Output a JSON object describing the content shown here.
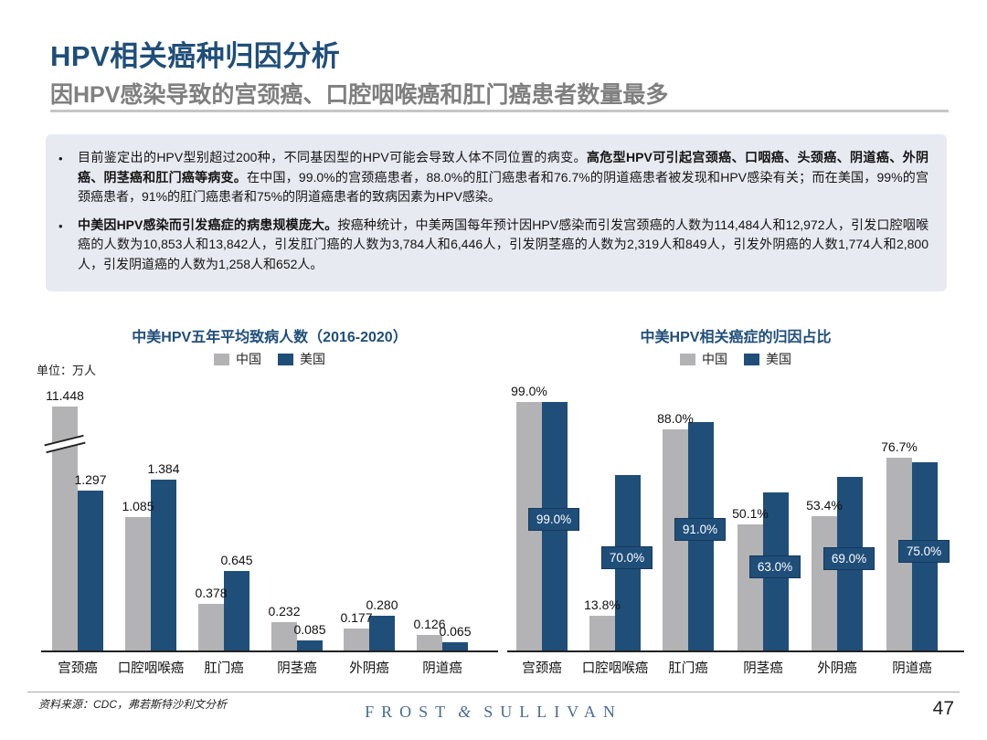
{
  "header": {
    "title": "HPV相关癌种归因分析",
    "subtitle": "因HPV感染导致的宫颈癌、口腔咽喉癌和肛门癌患者数量最多"
  },
  "info_box": {
    "bullets": [
      {
        "segments": [
          {
            "text": "目前鉴定出的HPV型别超过200种，不同基因型的HPV可能会导致人体不同位置的病变。",
            "bold": false
          },
          {
            "text": "高危型HPV可引起宫颈癌、口咽癌、头颈癌、阴道癌、外阴癌、阴茎癌和肛门癌等病变。",
            "bold": true
          },
          {
            "text": "在中国，99.0%的宫颈癌患者，88.0%的肛门癌患者和76.7%的阴道癌患者被发现和HPV感染有关；而在美国，99%的宫颈癌患者，91%的肛门癌患者和75%的阴道癌患者的致病因素为HPV感染。",
            "bold": false
          }
        ]
      },
      {
        "segments": [
          {
            "text": "中美因HPV感染而引发癌症的病患规模庞大。",
            "bold": true
          },
          {
            "text": "按癌种统计，中美两国每年预计因HPV感染而引发宫颈癌的人数为114,484人和12,972人，引发口腔咽喉癌的人数为10,853人和13,842人，引发肛门癌的人数为3,784人和6,446人，引发阴茎癌的人数为2,319人和849人，引发外阴癌的人数1,774人和2,800人，引发阴道癌的人数为1,258人和652人。",
            "bold": false
          }
        ]
      }
    ]
  },
  "colors": {
    "china_bar": "#b3b3b5",
    "us_bar": "#1F4E79",
    "title_blue": "#1F4E79",
    "subtitle_gray": "#7f7f7f",
    "box_bg": "#e8eaf2",
    "logo_blue": "#4a6b8f"
  },
  "chart_data": [
    {
      "type": "bar",
      "title": "中美HPV五年平均致病人数（2016-2020）",
      "unit_label": "单位：万人",
      "ylabel": "万人",
      "legend": [
        "中国",
        "美国"
      ],
      "legend_position": "top-center",
      "grid": false,
      "categories": [
        "宫颈癌",
        "口腔咽喉癌",
        "肛门癌",
        "阴茎癌",
        "外阴癌",
        "阴道癌"
      ],
      "category_ids": [
        "cervical",
        "oral-pharyngeal",
        "anal",
        "penile",
        "vulvar",
        "vaginal"
      ],
      "series": [
        {
          "name": "中国",
          "values": [
            11.448,
            1.085,
            0.378,
            0.232,
            0.177,
            0.126
          ],
          "labels": [
            "11.448",
            "1.085",
            "0.378",
            "0.232",
            "0.177",
            "0.126"
          ]
        },
        {
          "name": "美国",
          "values": [
            1.297,
            1.384,
            0.645,
            0.085,
            0.28,
            0.065
          ],
          "labels": [
            "1.297",
            "1.384",
            "0.645",
            "0.085",
            "0.280",
            "0.065"
          ]
        }
      ],
      "axis_break": {
        "series": "中国",
        "category": "宫颈癌",
        "note": "bar clipped with double-slash break marks"
      }
    },
    {
      "type": "bar",
      "title": "中美HPV相关癌症的归因占比",
      "ylabel": "%",
      "ylim": [
        0,
        100
      ],
      "legend": [
        "中国",
        "美国"
      ],
      "legend_position": "top-center",
      "grid": false,
      "categories": [
        "宫颈癌",
        "口腔咽喉癌",
        "肛门癌",
        "阴茎癌",
        "外阴癌",
        "阴道癌"
      ],
      "category_ids": [
        "cervical",
        "oral-pharyngeal",
        "anal",
        "penile",
        "vulvar",
        "vaginal"
      ],
      "series": [
        {
          "name": "中国",
          "values": [
            99.0,
            13.8,
            88.0,
            50.1,
            53.4,
            76.7
          ],
          "labels": [
            "99.0%",
            "13.8%",
            "88.0%",
            "50.1%",
            "53.4%",
            "76.7%"
          ],
          "label_style": "above"
        },
        {
          "name": "美国",
          "values": [
            99.0,
            70.0,
            91.0,
            63.0,
            69.0,
            75.0
          ],
          "labels": [
            "99.0%",
            "70.0%",
            "91.0%",
            "63.0%",
            "69.0%",
            "75.0%"
          ],
          "label_style": "boxed-on-bar"
        }
      ]
    }
  ],
  "footer": {
    "source": "资料来源：CDC，弗若斯特沙利文分析",
    "logo_parts": [
      "FROST",
      "&",
      "SULLIVAN"
    ],
    "page_number": "47"
  }
}
